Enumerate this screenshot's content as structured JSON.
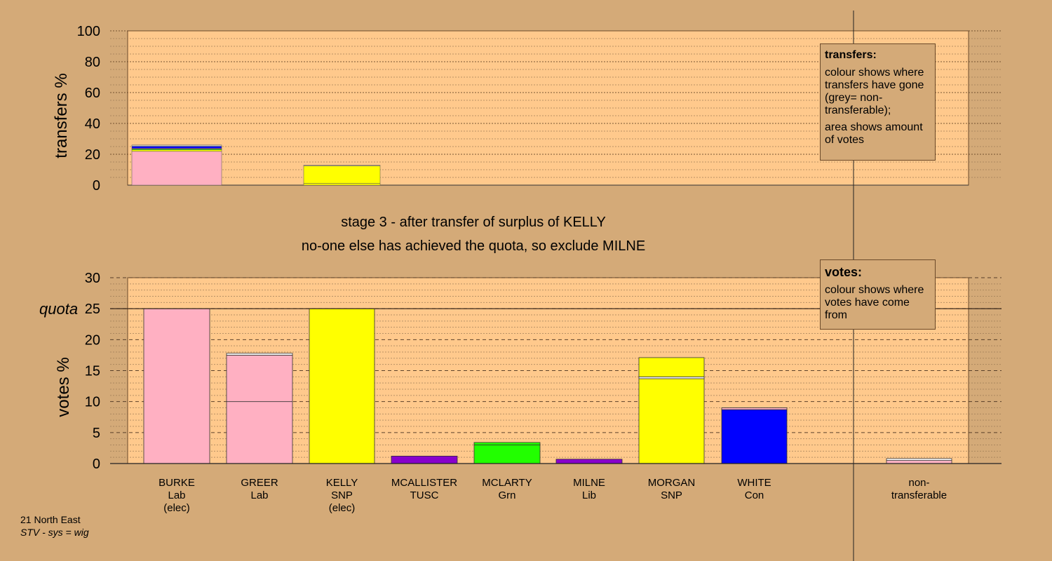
{
  "colors": {
    "background": "#d4aa78",
    "plot_background": "#ffc98c",
    "Lab": "#ffb0c2",
    "SNP": "#ffff00",
    "TUSC": "#8800cc",
    "Grn": "#22ff00",
    "Lib": "#8800cc",
    "Con": "#0000ff",
    "non-transferable": "#c8c8c8"
  },
  "stage": {
    "line1": "stage 3 - after transfer of surplus of KELLY",
    "line2": "no-one else has achieved the quota, so exclude MILNE"
  },
  "legends": {
    "transfers": {
      "title": "transfers:",
      "line1": "colour shows where transfers have gone (grey= non-transferable);",
      "line2": "area shows amount of votes"
    },
    "votes": {
      "title": "votes:",
      "line1": "colour shows where votes have come from"
    }
  },
  "footer": {
    "region": "21 North East",
    "system": "STV - sys = wig"
  },
  "chart_data": [
    {
      "type": "bar",
      "stacked": true,
      "ylabel": "transfers %",
      "ylim": [
        0,
        100
      ],
      "yticks": [
        0,
        20,
        40,
        60,
        80,
        100
      ],
      "grid": true,
      "bars": [
        {
          "candidate": "BURKE",
          "segments": [
            {
              "value": 21.9,
              "color": "#ffb0c2"
            },
            {
              "value": 1.0,
              "color": "#ffff00"
            },
            {
              "value": 0.6,
              "color": "#22ff00"
            },
            {
              "value": 0.5,
              "color": "#8800cc"
            },
            {
              "value": 1.2,
              "color": "#0000ff"
            },
            {
              "value": 0.8,
              "color": "#c8c8c8"
            }
          ]
        },
        {
          "candidate": "GREER",
          "segments": [
            {
              "value": 1.2,
              "color": "#ffff00"
            },
            {
              "value": 11.3,
              "color": "#ffff00"
            },
            {
              "value": 0.4,
              "color": "#c8c8c8"
            }
          ]
        }
      ]
    },
    {
      "type": "bar",
      "stacked": true,
      "ylabel": "votes %",
      "ylim": [
        0,
        30
      ],
      "yticks": [
        0,
        5,
        10,
        15,
        20,
        25,
        30
      ],
      "quota": 25,
      "quota_label": "quota",
      "grid": true,
      "categories": [
        {
          "name": "BURKE",
          "party": "Lab",
          "note": "(elec)"
        },
        {
          "name": "GREER",
          "party": "Lab",
          "note": ""
        },
        {
          "name": "KELLY",
          "party": "SNP",
          "note": "(elec)"
        },
        {
          "name": "MCALLISTER",
          "party": "TUSC",
          "note": ""
        },
        {
          "name": "MCLARTY",
          "party": "Grn",
          "note": ""
        },
        {
          "name": "MILNE",
          "party": "Lib",
          "note": ""
        },
        {
          "name": "MORGAN",
          "party": "SNP",
          "note": ""
        },
        {
          "name": "WHITE",
          "party": "Con",
          "note": ""
        }
      ],
      "extra_category": {
        "line1": "non-",
        "line2": "transferable"
      },
      "stacks": [
        [
          {
            "value": 25.0,
            "color": "#ffb0c2"
          }
        ],
        [
          {
            "value": 10.0,
            "color": "#ffb0c2"
          },
          {
            "value": 7.5,
            "color": "#ffb0c2"
          },
          {
            "value": 0.3,
            "color": "#ffffff"
          }
        ],
        [
          {
            "value": 25.0,
            "color": "#ffff00"
          }
        ],
        [
          {
            "value": 1.2,
            "color": "#8800cc"
          }
        ],
        [
          {
            "value": 3.0,
            "color": "#22ff00"
          },
          {
            "value": 0.4,
            "color": "#22ff00"
          }
        ],
        [
          {
            "value": 0.7,
            "color": "#8800cc"
          }
        ],
        [
          {
            "value": 13.7,
            "color": "#ffff00"
          },
          {
            "value": 0.3,
            "color": "#ffffff"
          },
          {
            "value": 3.1,
            "color": "#ffff00"
          }
        ],
        [
          {
            "value": 8.7,
            "color": "#0000ff"
          },
          {
            "value": 0.3,
            "color": "#ffb0c2"
          }
        ],
        [
          {
            "value": 0.5,
            "color": "#ffb0c2"
          },
          {
            "value": 0.3,
            "color": "#ffffff"
          }
        ]
      ]
    }
  ]
}
